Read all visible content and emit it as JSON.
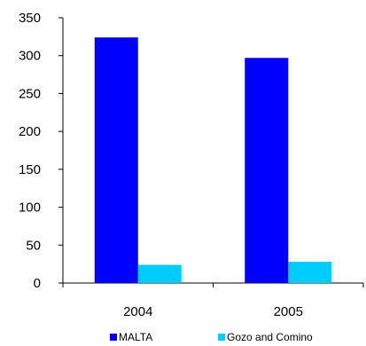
{
  "chart_data": {
    "type": "bar",
    "categories": [
      "2004",
      "2005"
    ],
    "series": [
      {
        "name": "MALTA",
        "values": [
          324,
          297
        ],
        "color": "#0000FF"
      },
      {
        "name": "Gozo and Comino",
        "values": [
          24,
          28
        ],
        "color": "#00CCFF"
      }
    ],
    "ylim": [
      0,
      350
    ],
    "yticks": [
      0,
      50,
      100,
      150,
      200,
      250,
      300,
      350
    ],
    "grid": false,
    "legend_position": "bottom"
  }
}
